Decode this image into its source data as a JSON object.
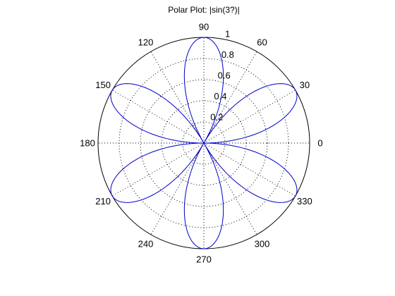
{
  "chart_data": {
    "type": "polar",
    "title": "Polar Plot: |sin(3?)|",
    "function": "|sin(3θ)|",
    "theta_start_deg": 0,
    "theta_end_deg": 360,
    "theta_step_deg": 1,
    "r_lim": [
      0,
      1
    ],
    "r_ticks": [
      "0.2",
      "0.4",
      "0.6",
      "0.8",
      "1"
    ],
    "r_tick_values": [
      0.2,
      0.4,
      0.6,
      0.8,
      1
    ],
    "theta_ticks": [
      "0",
      "30",
      "60",
      "90",
      "120",
      "150",
      "180",
      "210",
      "240",
      "270",
      "300",
      "330"
    ],
    "theta_tick_values": [
      0,
      30,
      60,
      90,
      120,
      150,
      180,
      210,
      240,
      270,
      300,
      330
    ],
    "grid": true,
    "series": [
      {
        "color": "#0000cc"
      }
    ]
  }
}
